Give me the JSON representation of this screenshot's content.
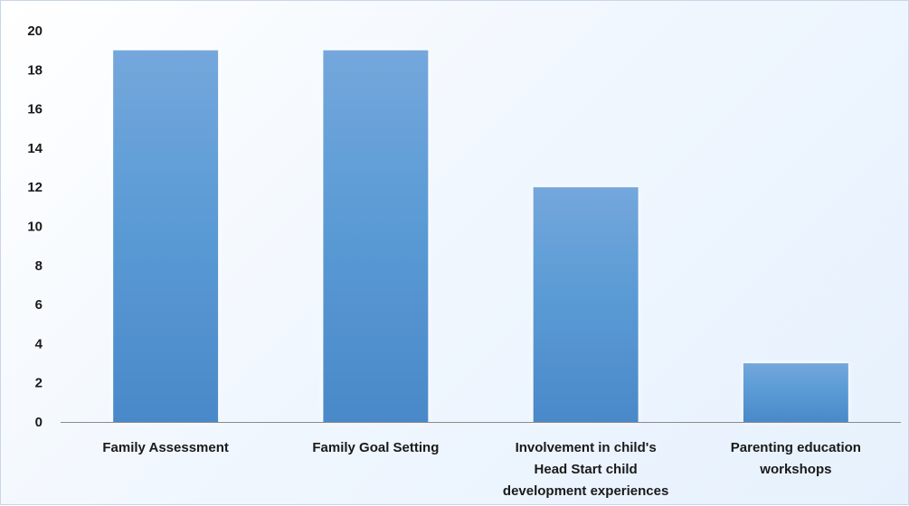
{
  "chart_data": {
    "type": "bar",
    "title": "",
    "xlabel": "",
    "ylabel": "",
    "ylim": [
      0,
      20
    ],
    "yticks": [
      0,
      2,
      4,
      6,
      8,
      10,
      12,
      14,
      16,
      18,
      20
    ],
    "grid": false,
    "legend": "none",
    "categories": [
      [
        "Family Assessment"
      ],
      [
        "Family Goal Setting"
      ],
      [
        "Involvement in child's",
        "Head Start child",
        "development experiences"
      ],
      [
        "Parenting education",
        "workshops"
      ]
    ],
    "values": [
      19,
      19,
      12,
      3
    ],
    "colors": {
      "bar_top": "#74a7dc",
      "bar_mid": "#5b9bd5",
      "bar_bottom": "#4a89c9",
      "bar_glow": "#ffffff",
      "axis": "#8c8c8c",
      "background_start": "#ffffff",
      "background_end": "#e6f1fd"
    }
  }
}
